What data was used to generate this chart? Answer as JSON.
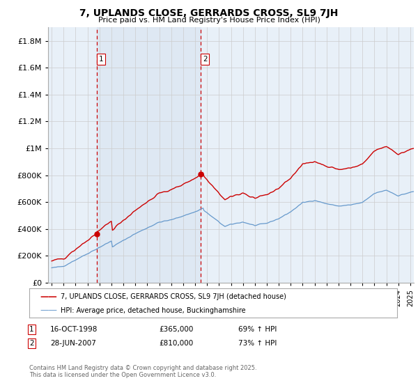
{
  "title": "7, UPLANDS CLOSE, GERRARDS CROSS, SL9 7JH",
  "subtitle": "Price paid vs. HM Land Registry's House Price Index (HPI)",
  "legend_line1": "7, UPLANDS CLOSE, GERRARDS CROSS, SL9 7JH (detached house)",
  "legend_line2": "HPI: Average price, detached house, Buckinghamshire",
  "footer": "Contains HM Land Registry data © Crown copyright and database right 2025.\nThis data is licensed under the Open Government Licence v3.0.",
  "purchase1_date": "16-OCT-1998",
  "purchase1_price": 365000,
  "purchase1_pct": "69% ↑ HPI",
  "purchase2_date": "28-JUN-2007",
  "purchase2_price": 810000,
  "purchase2_pct": "73% ↑ HPI",
  "purchase1_x": 1998.79,
  "purchase2_x": 2007.49,
  "red_color": "#cc0000",
  "blue_color": "#6699cc",
  "vline_color": "#cc0000",
  "grid_color": "#cccccc",
  "bg_color": "#e8f0f8",
  "bg_between": "#dde8f5",
  "ylim": [
    0,
    1900000
  ],
  "yticks": [
    0,
    200000,
    400000,
    600000,
    800000,
    1000000,
    1200000,
    1400000,
    1600000,
    1800000
  ],
  "xlim_start": 1994.7,
  "xlim_end": 2025.3
}
